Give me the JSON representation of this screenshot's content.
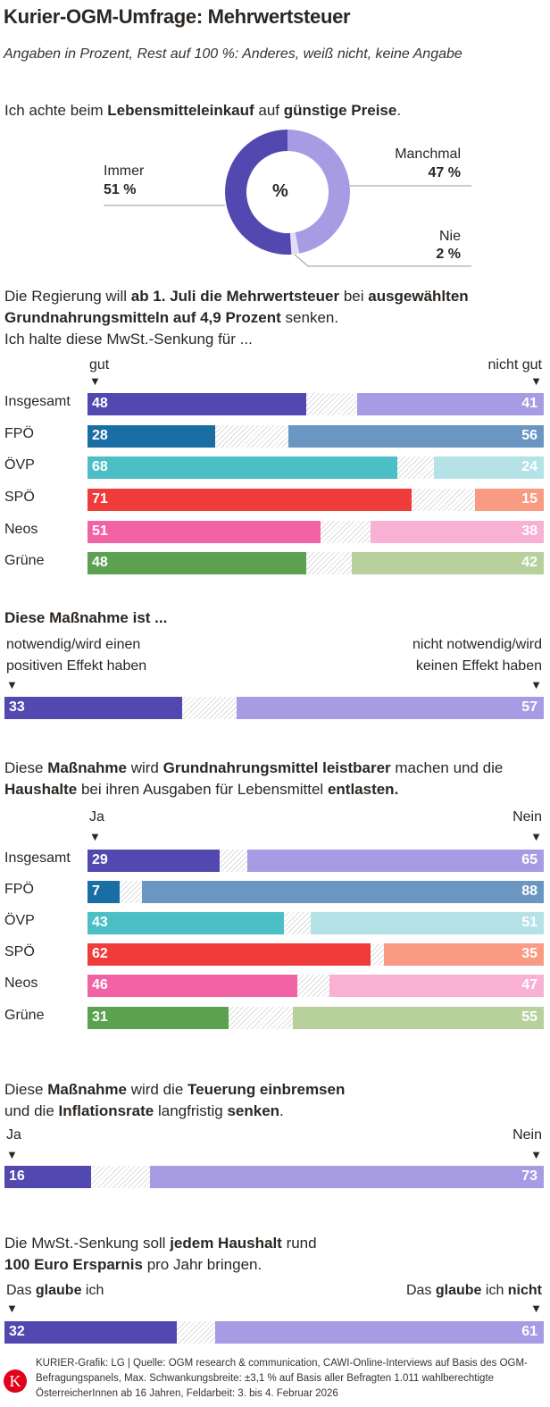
{
  "title": "Kurier-OGM-Umfrage: Mehrwertsteuer",
  "subtitle": "Angaben in Prozent, Rest auf 100 %: Anderes, weiß nicht, keine Angabe",
  "colors": {
    "hatch": "#dddddd"
  },
  "chart_data": [
    {
      "type": "pie",
      "title_segments": [
        {
          "t": "Ich achte beim "
        },
        {
          "t": "Lebensmitteleinkauf",
          "b": true
        },
        {
          "t": " auf "
        },
        {
          "t": "günstige Preise",
          "b": true
        },
        {
          "t": "."
        }
      ],
      "center_label": "%",
      "slices": [
        {
          "name": "Immer",
          "value": 51,
          "label": "51 %",
          "color": "#5249b0"
        },
        {
          "name": "Manchmal",
          "value": 47,
          "label": "47 %",
          "color": "#a79be4"
        },
        {
          "name": "Nie",
          "value": 2,
          "label": "2 %",
          "color": "#e2ddf6"
        }
      ]
    },
    {
      "type": "bar",
      "stacked": true,
      "title_segments": [
        {
          "t": "Die Regierung will "
        },
        {
          "t": "ab 1. Juli die Mehrwertsteuer",
          "b": true
        },
        {
          "t": " bei "
        },
        {
          "t": "ausgewählten Grundnahrungsmitteln auf 4,9 Prozent",
          "b": true
        },
        {
          "t": " senken."
        },
        {
          "br": true
        },
        {
          "t": "Ich halte diese MwSt.-Senkung für ..."
        }
      ],
      "left_label": "gut",
      "right_label": "nicht gut",
      "rows": [
        {
          "name": "Insgesamt",
          "left": 48,
          "right": 41,
          "c1": "#5249b0",
          "c2": "#a79be4"
        },
        {
          "name": "FPÖ",
          "left": 28,
          "right": 56,
          "c1": "#1a6ea3",
          "c2": "#6b96c2"
        },
        {
          "name": "ÖVP",
          "left": 68,
          "right": 24,
          "c1": "#4bbec6",
          "c2": "#b5e2e6"
        },
        {
          "name": "SPÖ",
          "left": 71,
          "right": 15,
          "c1": "#ef3b39",
          "c2": "#f99a83"
        },
        {
          "name": "Neos",
          "left": 51,
          "right": 38,
          "c1": "#f263a5",
          "c2": "#f8b0d5"
        },
        {
          "name": "Grüne",
          "left": 48,
          "right": 42,
          "c1": "#5ba150",
          "c2": "#b8d09c"
        }
      ]
    },
    {
      "type": "bar",
      "stacked": true,
      "title_segments": [
        {
          "t": "Diese Maßnahme ist ...",
          "b": true
        }
      ],
      "left_label": "notwendig/wird einen positiven Effekt haben",
      "right_label": "nicht notwendig/wird keinen Effekt haben",
      "rows": [
        {
          "name": "",
          "left": 33,
          "right": 57,
          "c1": "#5249b0",
          "c2": "#a79be4"
        }
      ]
    },
    {
      "type": "bar",
      "stacked": true,
      "title_segments": [
        {
          "t": "Diese "
        },
        {
          "t": "Maßnahme",
          "b": true
        },
        {
          "t": " wird "
        },
        {
          "t": "Grundnahrungsmittel leistbarer",
          "b": true
        },
        {
          "t": " machen und die "
        },
        {
          "br": true
        },
        {
          "t": "Haushalte",
          "b": true
        },
        {
          "t": " bei ihren Ausgaben für Lebensmittel "
        },
        {
          "t": "entlasten.",
          "b": true
        }
      ],
      "left_label": "Ja",
      "right_label": "Nein",
      "rows": [
        {
          "name": "Insgesamt",
          "left": 29,
          "right": 65,
          "c1": "#5249b0",
          "c2": "#a79be4"
        },
        {
          "name": "FPÖ",
          "left": 7,
          "right": 88,
          "c1": "#1a6ea3",
          "c2": "#6b96c2"
        },
        {
          "name": "ÖVP",
          "left": 43,
          "right": 51,
          "c1": "#4bbec6",
          "c2": "#b5e2e6"
        },
        {
          "name": "SPÖ",
          "left": 62,
          "right": 35,
          "c1": "#ef3b39",
          "c2": "#f99a83"
        },
        {
          "name": "Neos",
          "left": 46,
          "right": 47,
          "c1": "#f263a5",
          "c2": "#f8b0d5"
        },
        {
          "name": "Grüne",
          "left": 31,
          "right": 55,
          "c1": "#5ba150",
          "c2": "#b8d09c"
        }
      ]
    },
    {
      "type": "bar",
      "stacked": true,
      "title_segments": [
        {
          "t": "Diese "
        },
        {
          "t": "Maßnahme",
          "b": true
        },
        {
          "t": " wird die "
        },
        {
          "t": "Teuerung einbremsen",
          "b": true
        },
        {
          "br": true
        },
        {
          "t": "und die "
        },
        {
          "t": "Inflationsrate",
          "b": true
        },
        {
          "t": " langfristig "
        },
        {
          "t": "senken",
          "b": true
        },
        {
          "t": "."
        }
      ],
      "left_label": "Ja",
      "right_label": "Nein",
      "rows": [
        {
          "name": "",
          "left": 16,
          "right": 73,
          "c1": "#5249b0",
          "c2": "#a79be4"
        }
      ]
    },
    {
      "type": "bar",
      "stacked": true,
      "title_segments": [
        {
          "t": "Die MwSt.-Senkung soll "
        },
        {
          "t": "jedem Haushalt",
          "b": true
        },
        {
          "t": " rund"
        },
        {
          "br": true
        },
        {
          "t": "100 Euro Ersparnis",
          "b": true
        },
        {
          "t": " pro Jahr bringen."
        }
      ],
      "left_label_segments": [
        {
          "t": "Das "
        },
        {
          "t": "glaube",
          "b": true
        },
        {
          "t": " ich"
        }
      ],
      "right_label_segments": [
        {
          "t": "Das "
        },
        {
          "t": "glaube",
          "b": true
        },
        {
          "t": " ich "
        },
        {
          "t": "nicht",
          "b": true
        }
      ],
      "rows": [
        {
          "name": "",
          "left": 32,
          "right": 61,
          "c1": "#5249b0",
          "c2": "#a79be4"
        }
      ]
    }
  ],
  "footer": {
    "logo": "K",
    "text": "KURIER-Grafik: LG | Quelle: OGM research & communication, CAWI-Online-Interviews auf Basis des OGM-Befragungspanels, Max. Schwankungsbreite: ±3,1 % auf Basis aller Befragten 1.011 wahlberechtigte ÖsterreicherInnen ab 16 Jahren, Feldarbeit: 3. bis 4. Februar 2026"
  }
}
